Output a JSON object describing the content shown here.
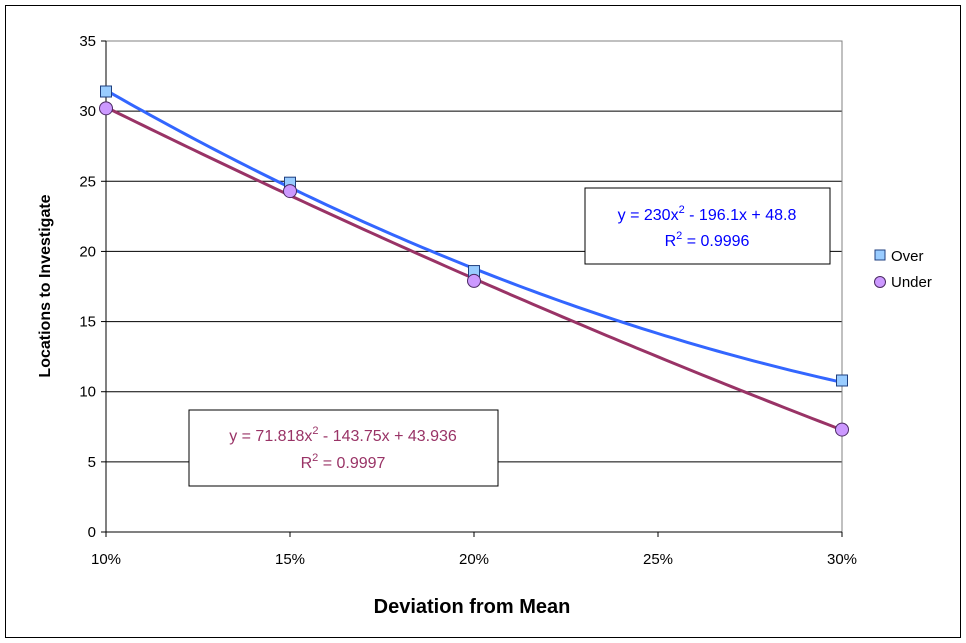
{
  "chart_data": {
    "type": "scatter",
    "title": "",
    "xlabel": "Deviation from Mean",
    "ylabel": "Locations to Investigate",
    "x": [
      0.1,
      0.15,
      0.2,
      0.3
    ],
    "x_ticks": [
      "10%",
      "15%",
      "20%",
      "25%",
      "30%"
    ],
    "x_tick_values": [
      0.1,
      0.15,
      0.2,
      0.25,
      0.3
    ],
    "xlim": [
      0.1,
      0.3
    ],
    "ylim": [
      0,
      35
    ],
    "y_ticks": [
      "0",
      "5",
      "10",
      "15",
      "20",
      "25",
      "30",
      "35"
    ],
    "y_tick_values": [
      0,
      5,
      10,
      15,
      20,
      25,
      30,
      35
    ],
    "grid": "horizontal",
    "legend_position": "right",
    "series": [
      {
        "name": "Over",
        "values": [
          31.4,
          24.9,
          18.6,
          10.8
        ],
        "marker": "square",
        "marker_color": "#99ccff",
        "trend_color": "#3366ff",
        "trend_coeffs": [
          230,
          -196.1,
          48.8
        ],
        "equation": {
          "prefix": "y = 230x",
          "exponent": "2",
          "suffix": " - 196.1x + 48.8"
        },
        "r2": {
          "prefix": "R",
          "exponent": "2",
          "suffix": " = 0.9996"
        }
      },
      {
        "name": "Under",
        "values": [
          30.2,
          24.3,
          17.9,
          7.3
        ],
        "marker": "circle",
        "marker_color": "#cc99ff",
        "trend_color": "#993366",
        "trend_coeffs": [
          71.818,
          -143.75,
          43.936
        ],
        "equation": {
          "prefix": "y = 71.818x",
          "exponent": "2",
          "suffix": " - 143.75x + 43.936"
        },
        "r2": {
          "prefix": "R",
          "exponent": "2",
          "suffix": " = 0.9997"
        }
      }
    ]
  }
}
